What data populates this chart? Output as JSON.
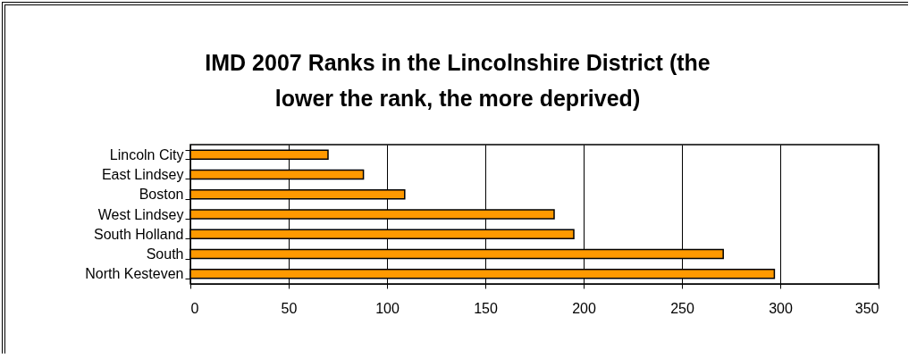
{
  "chart_data": {
    "type": "bar",
    "orientation": "horizontal",
    "title": "IMD 2007 Ranks in the Lincolnshire District (the lower the rank, the more deprived)",
    "categories": [
      "Lincoln City",
      "East Lindsey",
      "Boston",
      "West Lindsey ",
      "South Holland",
      "South",
      "North Kesteven"
    ],
    "values": [
      70,
      88,
      109,
      185,
      195,
      271,
      297
    ],
    "color": "#ff9900",
    "xlim": [
      0,
      350
    ],
    "xticks": [
      0,
      50,
      100,
      150,
      200,
      250,
      300,
      350
    ],
    "grid": "x"
  }
}
